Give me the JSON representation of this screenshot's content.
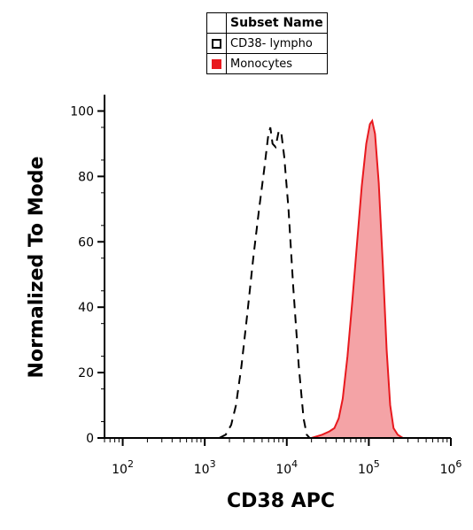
{
  "chart_data": {
    "type": "area",
    "xlabel": "CD38 APC",
    "ylabel": "Normalized To Mode",
    "x_scale": "log",
    "xlim": [
      60,
      1000000
    ],
    "ylim": [
      0,
      105
    ],
    "x_ticks": [
      {
        "base": "10",
        "exp": "2",
        "value": 100
      },
      {
        "base": "10",
        "exp": "3",
        "value": 1000
      },
      {
        "base": "10",
        "exp": "4",
        "value": 10000
      },
      {
        "base": "10",
        "exp": "5",
        "value": 100000
      },
      {
        "base": "10",
        "exp": "6",
        "value": 1000000
      }
    ],
    "y_ticks": [
      "0",
      "20",
      "40",
      "60",
      "80",
      "100"
    ],
    "legend": {
      "header": "Subset Name",
      "placement": "top-center"
    },
    "series": [
      {
        "name": "CD38- lympho",
        "style": "dashed-outline",
        "color": "#000000",
        "points": [
          [
            1500,
            0
          ],
          [
            1800,
            1
          ],
          [
            2100,
            4
          ],
          [
            2400,
            10
          ],
          [
            2800,
            22
          ],
          [
            3300,
            38
          ],
          [
            3900,
            55
          ],
          [
            4600,
            70
          ],
          [
            5300,
            82
          ],
          [
            5900,
            92
          ],
          [
            6300,
            95
          ],
          [
            6700,
            90
          ],
          [
            7300,
            89
          ],
          [
            8000,
            94
          ],
          [
            8600,
            93
          ],
          [
            9300,
            86
          ],
          [
            10500,
            70
          ],
          [
            12000,
            46
          ],
          [
            14000,
            22
          ],
          [
            16000,
            6
          ],
          [
            17500,
            1
          ],
          [
            19000,
            0
          ]
        ]
      },
      {
        "name": "Monocytes",
        "style": "filled",
        "color": "#e8191e",
        "fill": "#f4a3a6",
        "points": [
          [
            1000,
            0
          ],
          [
            10000,
            0
          ],
          [
            20000,
            0
          ],
          [
            27000,
            1
          ],
          [
            33000,
            2
          ],
          [
            38000,
            3
          ],
          [
            43000,
            6
          ],
          [
            48000,
            12
          ],
          [
            55000,
            25
          ],
          [
            63000,
            42
          ],
          [
            72000,
            60
          ],
          [
            82000,
            77
          ],
          [
            93000,
            90
          ],
          [
            103000,
            96
          ],
          [
            110000,
            97
          ],
          [
            119000,
            93
          ],
          [
            132000,
            78
          ],
          [
            148000,
            53
          ],
          [
            165000,
            27
          ],
          [
            182000,
            10
          ],
          [
            200000,
            3
          ],
          [
            225000,
            1
          ],
          [
            260000,
            0
          ],
          [
            1000000,
            0
          ]
        ]
      }
    ]
  }
}
